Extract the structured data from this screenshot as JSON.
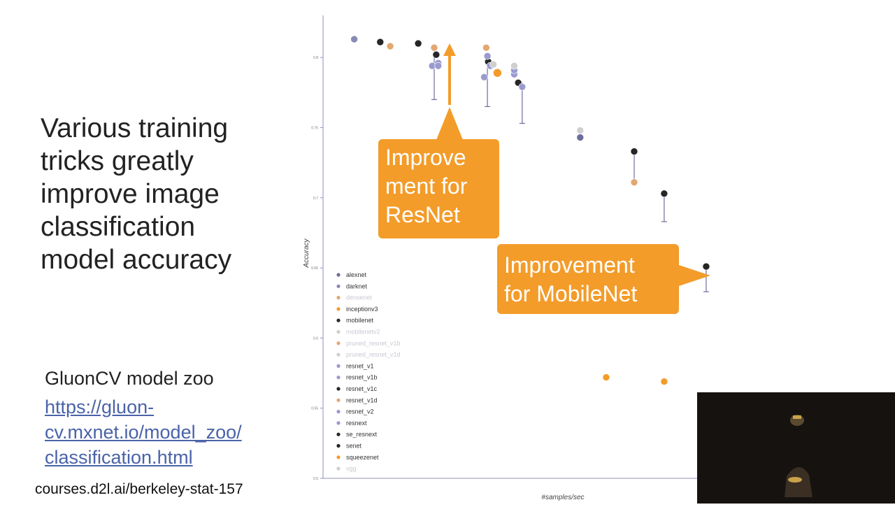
{
  "slide": {
    "headline_lines": [
      "Various training",
      "tricks greatly",
      "improve image",
      "classification",
      "model accuracy"
    ],
    "zoo_label": "GluonCV model zoo",
    "zoo_link_lines": [
      "https://gluon-",
      "cv.mxnet.io/model_zoo/",
      "classification.html"
    ],
    "course_url": "courses.d2l.ai/berkeley-stat-157",
    "callout_resnet_lines": [
      "Improve",
      "ment for",
      "ResNet"
    ],
    "callout_mobilenet_lines": [
      "Improvement",
      "for MobileNet"
    ]
  },
  "colors": {
    "callout": "#f39c2a",
    "axis": "#8f8fbf",
    "alexnet": "#6d6d9c",
    "darknet": "#8a8ab8",
    "densenet": "#e3a872",
    "inceptionv3": "#f39c2a",
    "mobilenet": "#262626",
    "mobilenetv2": "#cfcfcf",
    "resnet": "#9a9ad0",
    "resnet_v1c": "#262626",
    "squeezenet": "#f39c2a",
    "vgg": "#d8d8e8"
  },
  "chart_data": {
    "type": "scatter",
    "title": "",
    "xlabel": "#samples/sec",
    "ylabel": "Accuracy",
    "xlim": [
      0,
      100
    ],
    "ylim": [
      0.5,
      0.83
    ],
    "y_ticks": [
      0.5,
      0.55,
      0.6,
      0.65,
      0.7,
      0.75,
      0.8
    ],
    "x_ticks": [],
    "grid": false,
    "legend_position": "bottom-left",
    "legend": [
      "alexnet",
      "darknet",
      "densenet",
      "inceptionv3",
      "mobilenet",
      "mobilenetv2",
      "pruned_resnet_v1b",
      "pruned_resnet_v1d",
      "resnet_v1",
      "resnet_v1b",
      "resnet_v1c",
      "resnet_v1d",
      "resnet_v2",
      "resnext",
      "se_resnext",
      "senet",
      "squeezenet",
      "vgg"
    ],
    "series": [
      {
        "name": "darknet",
        "points": [
          {
            "x": 5,
            "y": 0.813
          }
        ]
      },
      {
        "name": "se_resnext",
        "points": [
          {
            "x": 11.5,
            "y": 0.811
          }
        ]
      },
      {
        "name": "densenet",
        "points": [
          {
            "x": 14,
            "y": 0.808
          }
        ]
      },
      {
        "name": "senet",
        "points": [
          {
            "x": 21,
            "y": 0.81
          }
        ]
      },
      {
        "name": "resnet_v1d",
        "points": [
          {
            "x": 25,
            "y": 0.807
          },
          {
            "x": 38,
            "y": 0.807
          }
        ]
      },
      {
        "name": "resnet_v1c",
        "points": [
          {
            "x": 25.5,
            "y": 0.802
          },
          {
            "x": 38.5,
            "y": 0.797
          },
          {
            "x": 46,
            "y": 0.782
          }
        ]
      },
      {
        "name": "resnet_v1b",
        "points": [
          {
            "x": 26,
            "y": 0.796
          },
          {
            "x": 38.3,
            "y": 0.801
          },
          {
            "x": 45,
            "y": 0.788
          }
        ]
      },
      {
        "name": "resnet_v1",
        "points": [
          {
            "x": 24.5,
            "y": 0.794
          },
          {
            "x": 37.5,
            "y": 0.786
          },
          {
            "x": 45,
            "y": 0.791
          }
        ]
      },
      {
        "name": "resnet_v2",
        "points": [
          {
            "x": 26,
            "y": 0.794
          },
          {
            "x": 39,
            "y": 0.794
          },
          {
            "x": 47,
            "y": 0.779
          }
        ]
      },
      {
        "name": "inceptionv3",
        "points": [
          {
            "x": 40.8,
            "y": 0.789
          }
        ]
      },
      {
        "name": "pruned_resnet_v1d",
        "points": [
          {
            "x": 39.8,
            "y": 0.795
          }
        ]
      },
      {
        "name": "mobilenetv2",
        "points": [
          {
            "x": 45,
            "y": 0.794
          }
        ]
      },
      {
        "name": "vgg",
        "points": [
          {
            "x": 61.5,
            "y": 0.748
          }
        ]
      },
      {
        "name": "alexnet",
        "points": [
          {
            "x": 61.5,
            "y": 0.743
          }
        ]
      },
      {
        "name": "mobilenet",
        "points": [
          {
            "x": 75,
            "y": 0.733
          },
          {
            "x": 82.5,
            "y": 0.703
          },
          {
            "x": 93,
            "y": 0.651
          }
        ]
      },
      {
        "name": "pruned_resnet_v1b",
        "points": [
          {
            "x": 75,
            "y": 0.711
          }
        ]
      },
      {
        "name": "squeezenet",
        "points": [
          {
            "x": 68,
            "y": 0.572
          },
          {
            "x": 82.5,
            "y": 0.569
          }
        ]
      }
    ],
    "error_bars": [
      {
        "x": 25,
        "y_low": 0.77,
        "y_high": 0.807
      },
      {
        "x": 38.3,
        "y_low": 0.765,
        "y_high": 0.801
      },
      {
        "x": 47,
        "y_low": 0.753,
        "y_high": 0.782
      },
      {
        "x": 75,
        "y_low": 0.711,
        "y_high": 0.733
      },
      {
        "x": 82.5,
        "y_low": 0.683,
        "y_high": 0.703
      },
      {
        "x": 93,
        "y_low": 0.633,
        "y_high": 0.651
      }
    ]
  }
}
